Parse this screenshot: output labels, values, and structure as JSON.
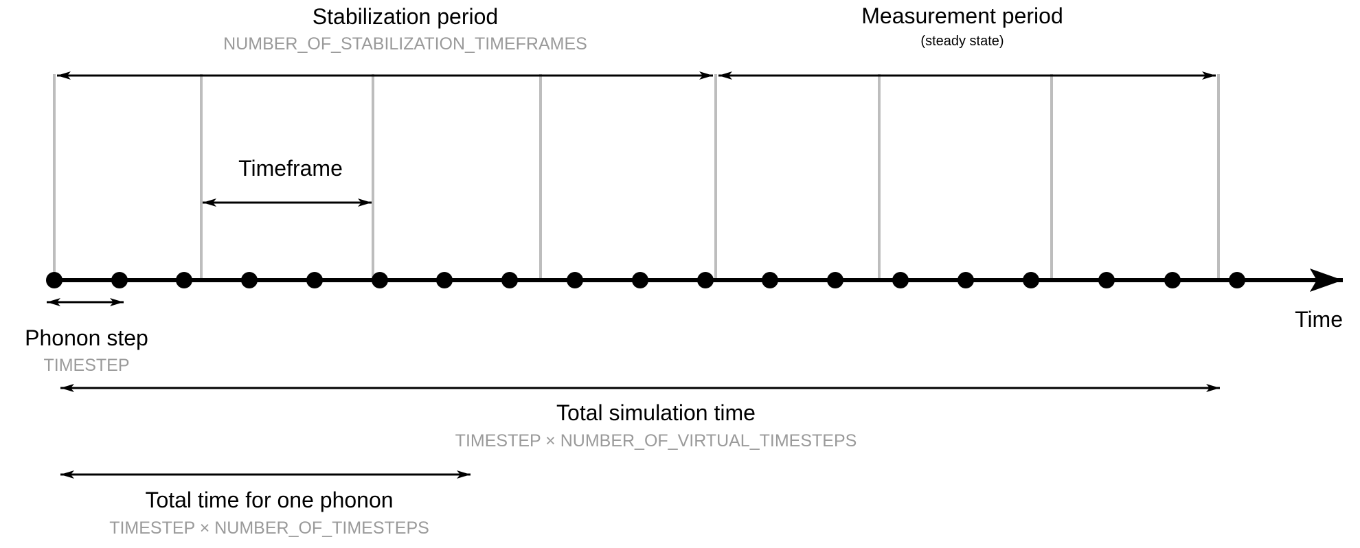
{
  "labels": {
    "stabilization_title": "Stabilization period",
    "stabilization_param": "NUMBER_OF_STABILIZATION_TIMEFRAMES",
    "measurement_title": "Measurement period",
    "measurement_note": "(steady state)",
    "timeframe": "Timeframe",
    "phonon_step": "Phonon step",
    "phonon_step_param": "TIMESTEP",
    "time_axis": "Time",
    "total_sim_title": "Total simulation time",
    "total_sim_param": "TIMESTEP × NUMBER_OF_VIRTUAL_TIMESTEPS",
    "one_phonon_title": "Total time for one phonon",
    "one_phonon_param": "TIMESTEP × NUMBER_OF_TIMESTEPS"
  },
  "counts": {
    "phonon_steps": 19,
    "timeframe_boundaries": 8
  },
  "colors": {
    "ink": "#000000",
    "boundary": "#bdbdbd",
    "parameter_text": "#9a9a9a",
    "background": "#ffffff"
  }
}
